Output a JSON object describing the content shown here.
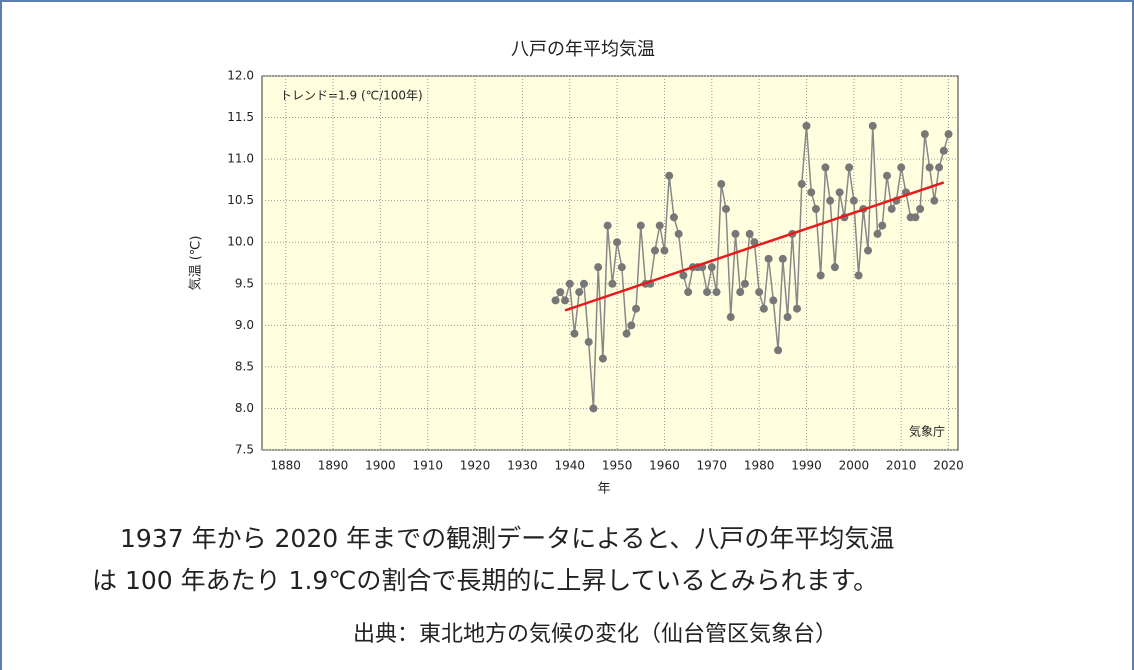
{
  "chart_data": {
    "type": "line",
    "title": "八戸の年平均気温",
    "annotation": "トレンド=1.9 (℃/100年)",
    "credit": "気象庁",
    "ylabel": "気温 (℃)",
    "xlabel": "年",
    "x": [
      1937,
      1938,
      1939,
      1940,
      1941,
      1942,
      1943,
      1944,
      1945,
      1946,
      1947,
      1948,
      1949,
      1950,
      1951,
      1952,
      1953,
      1954,
      1955,
      1956,
      1957,
      1958,
      1959,
      1960,
      1961,
      1962,
      1963,
      1964,
      1965,
      1966,
      1967,
      1968,
      1969,
      1970,
      1971,
      1972,
      1973,
      1974,
      1975,
      1976,
      1977,
      1978,
      1979,
      1980,
      1981,
      1982,
      1983,
      1984,
      1985,
      1986,
      1987,
      1988,
      1989,
      1990,
      1991,
      1992,
      1993,
      1994,
      1995,
      1996,
      1997,
      1998,
      1999,
      2000,
      2001,
      2002,
      2003,
      2004,
      2005,
      2006,
      2007,
      2008,
      2009,
      2010,
      2011,
      2012,
      2013,
      2014,
      2015,
      2016,
      2017,
      2018,
      2019,
      2020
    ],
    "values": [
      9.3,
      9.4,
      9.3,
      9.5,
      8.9,
      9.4,
      9.5,
      8.8,
      8.0,
      9.7,
      8.6,
      10.2,
      9.5,
      10.0,
      9.7,
      8.9,
      9.0,
      9.2,
      10.2,
      9.5,
      9.5,
      9.9,
      10.2,
      9.9,
      10.8,
      10.3,
      10.1,
      9.6,
      9.4,
      9.7,
      9.7,
      9.7,
      9.4,
      9.7,
      9.4,
      10.7,
      10.4,
      9.1,
      10.1,
      9.4,
      9.5,
      10.1,
      10.0,
      9.4,
      9.2,
      9.8,
      9.3,
      8.7,
      9.8,
      9.1,
      10.1,
      9.2,
      10.7,
      11.4,
      10.6,
      10.4,
      9.6,
      10.9,
      10.5,
      9.7,
      10.6,
      10.3,
      10.9,
      10.5,
      9.6,
      10.4,
      9.9,
      11.4,
      10.1,
      10.2,
      10.8,
      10.4,
      10.5,
      10.9,
      10.6,
      10.3,
      10.3,
      10.4,
      11.3,
      10.9,
      10.5,
      10.9,
      11.1,
      11.3
    ],
    "color": "#777777",
    "trend": {
      "x": [
        1939,
        2019
      ],
      "values": [
        9.18,
        10.72
      ],
      "color": "#e8191c"
    },
    "xlim": [
      1875,
      2022
    ],
    "xticks": [
      1880,
      1890,
      1900,
      1910,
      1920,
      1930,
      1940,
      1950,
      1960,
      1970,
      1980,
      1990,
      2000,
      2010,
      2020
    ],
    "ylim": [
      7.5,
      12.0
    ],
    "yticks": [
      7.5,
      {
        "value": 8,
        "label": "8.0"
      },
      8.5,
      {
        "value": 9,
        "label": "9.0"
      },
      9.5,
      {
        "value": 10,
        "label": "10.0"
      },
      10.5,
      {
        "value": 11,
        "label": "11.0"
      },
      11.5,
      {
        "value": 12,
        "label": "12.0"
      }
    ],
    "grid": true
  },
  "text": {
    "paragraph": [
      "1937 年から 2020 年までの観測データによると、八戸の年平均気温",
      "は 100 年あたり 1.9℃の割合で長期的に上昇しているとみられます。"
    ],
    "source": "出典：東北地方の気候の変化（仙台管区気象台）"
  }
}
